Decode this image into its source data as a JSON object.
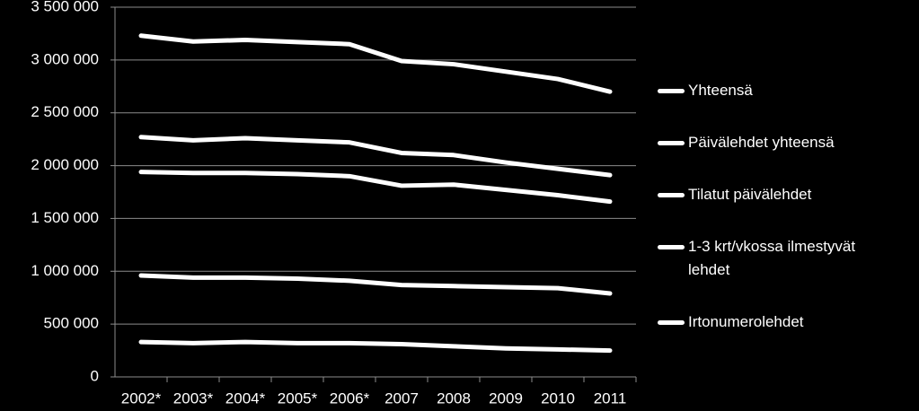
{
  "chart_data": {
    "type": "line",
    "categories": [
      "2002*",
      "2003*",
      "2004*",
      "2005*",
      "2006*",
      "2007",
      "2008",
      "2009",
      "2010",
      "2011"
    ],
    "series": [
      {
        "name": "Yhteensä",
        "color": "#ffffff",
        "values": [
          3230000,
          3175000,
          3190000,
          3170000,
          3150000,
          2990000,
          2960000,
          2890000,
          2820000,
          2700000
        ]
      },
      {
        "name": "Päivälehdet yhteensä",
        "color": "#ffffff",
        "values": [
          2270000,
          2240000,
          2260000,
          2240000,
          2220000,
          2120000,
          2100000,
          2030000,
          1970000,
          1910000
        ]
      },
      {
        "name": "Tilatut päivälehdet",
        "color": "#ffffff",
        "values": [
          1940000,
          1930000,
          1930000,
          1920000,
          1900000,
          1810000,
          1820000,
          1770000,
          1720000,
          1660000
        ]
      },
      {
        "name": "1-3 krt/vkossa ilmestyvät lehdet",
        "color": "#ffffff",
        "values": [
          960000,
          940000,
          940000,
          930000,
          910000,
          870000,
          860000,
          850000,
          840000,
          790000
        ]
      },
      {
        "name": "Irtonumerolehdet",
        "color": "#ffffff",
        "values": [
          330000,
          320000,
          330000,
          320000,
          320000,
          310000,
          290000,
          270000,
          260000,
          250000
        ]
      }
    ],
    "ylim": [
      0,
      3500000
    ],
    "yticks": [
      {
        "value": 0,
        "label": "0"
      },
      {
        "value": 500000,
        "label": "500 000"
      },
      {
        "value": 1000000,
        "label": "1 000 000"
      },
      {
        "value": 1500000,
        "label": "1 500 000"
      },
      {
        "value": 2000000,
        "label": "2 000 000"
      },
      {
        "value": 2500000,
        "label": "2 500 000"
      },
      {
        "value": 3000000,
        "label": "3 000 000"
      },
      {
        "value": 3500000,
        "label": "3 500 000"
      }
    ],
    "grid": true,
    "legend": "right"
  }
}
